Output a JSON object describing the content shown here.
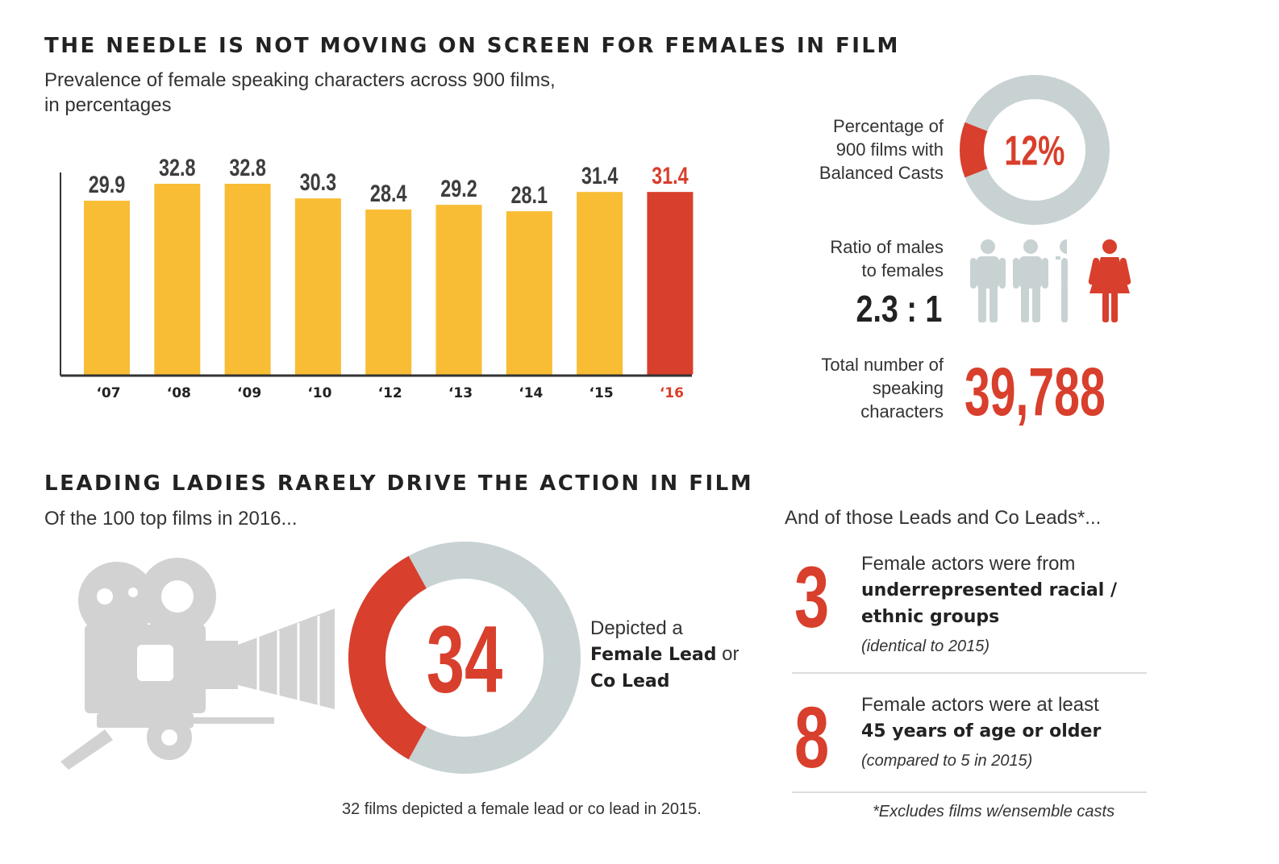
{
  "top": {
    "title": "THE NEEDLE IS NOT MOVING ON SCREEN FOR FEMALES IN FILM",
    "subtitle_line1": "Prevalence of female speaking characters across 900 films,",
    "subtitle_line2": "in percentages"
  },
  "chart_data": [
    {
      "type": "bar",
      "categories": [
        "‘07",
        "‘08",
        "‘09",
        "‘10",
        "‘12",
        "‘13",
        "‘14",
        "‘15",
        "‘16"
      ],
      "values": [
        29.9,
        32.8,
        32.8,
        30.3,
        28.4,
        29.2,
        28.1,
        31.4,
        31.4
      ],
      "value_labels": [
        "29.9",
        "32.8",
        "32.8",
        "30.3",
        "28.4",
        "29.2",
        "28.1",
        "31.4",
        "31.4"
      ],
      "highlight_index": 8,
      "ylim": [
        0,
        32.8
      ],
      "grid": false,
      "colors": {
        "bar": "#f8bd35",
        "highlight": "#d83f2c",
        "axis": "#333333",
        "label": "#3d3d3d"
      }
    },
    {
      "type": "pie",
      "variant": "donut",
      "values": [
        12,
        88
      ],
      "value_label": "12%",
      "colors": [
        "#d83f2c",
        "#c8d2d2"
      ]
    },
    {
      "type": "pie",
      "variant": "donut",
      "values": [
        34,
        66
      ],
      "value_label": "34",
      "colors": [
        "#d83f2c",
        "#c8d2d2"
      ]
    }
  ],
  "stats": {
    "balanced_label_1": "Percentage of",
    "balanced_label_2": "900 films with",
    "balanced_label_3": "Balanced Casts",
    "ratio_label_1": "Ratio of males",
    "ratio_label_2": "to females",
    "ratio_value": "2.3 : 1",
    "total_label_1": "Total number of",
    "total_label_2": "speaking",
    "total_label_3": "characters",
    "total_value": "39,788",
    "figure_colors": {
      "male": "#c8d2d2",
      "female": "#d83f2c"
    }
  },
  "bottom": {
    "title": "LEADING LADIES RARELY DRIVE THE ACTION IN FILM",
    "subtitle": "Of the 100 top films in 2016...",
    "donut_text_1": "Depicted a",
    "donut_text_2": "Female Lead",
    "donut_text_3": "or",
    "donut_text_4": "Co Lead",
    "footnote_2015": "32 films depicted a female lead or co lead in 2015.",
    "camera_icon": "film-camera-icon"
  },
  "leads": {
    "heading": "And of those Leads and Co Leads*...",
    "items": [
      {
        "number": "3",
        "line1": "Female actors were from",
        "bold1": "underrepresented racial /",
        "bold2": "ethnic groups",
        "note": "(identical to 2015)"
      },
      {
        "number": "8",
        "line1": "Female actors were at least",
        "bold1": "45 years of age or older",
        "bold2": "",
        "note": "(compared to 5 in 2015)"
      }
    ],
    "footnote": "*Excludes films w/ensemble casts"
  }
}
